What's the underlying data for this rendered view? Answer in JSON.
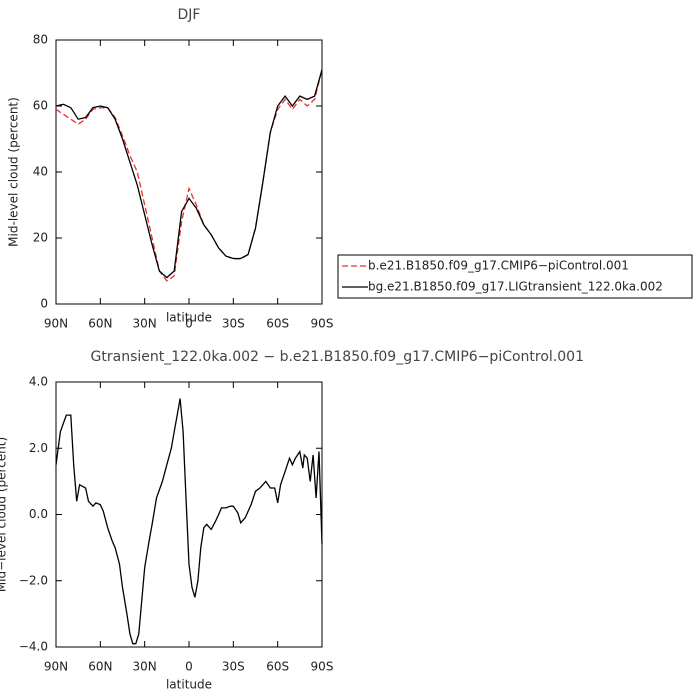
{
  "chart_data": [
    {
      "type": "line",
      "title": "DJF",
      "ylabel": "Mid-level cloud (percent)",
      "xlabel": "latitude",
      "x": [
        90,
        85,
        80,
        75,
        70,
        65,
        60,
        55,
        50,
        45,
        40,
        35,
        30,
        25,
        20,
        15,
        10,
        5,
        0,
        -5,
        -10,
        -15,
        -20,
        -25,
        -30,
        -35,
        -40,
        -45,
        -50,
        -55,
        -60,
        -65,
        -70,
        -75,
        -80,
        -85,
        -90
      ],
      "series": [
        {
          "name": "b.e21.B1850.f09_g17.CMIP6−piControl.001",
          "color": "#e8312f",
          "dash": true,
          "values": [
            59,
            57.5,
            56,
            54.5,
            56,
            59,
            59.5,
            59.5,
            56.5,
            51,
            45,
            40,
            30,
            20,
            10,
            7,
            8.5,
            25,
            35,
            30,
            24,
            21,
            17,
            14.5,
            13.7,
            13.7,
            15,
            23,
            37,
            52,
            59,
            62,
            59,
            62,
            60,
            62,
            71
          ]
        },
        {
          "name": "bg.e21.B1850.f09_g17.LIGtransient_122.0ka.002",
          "color": "#000000",
          "dash": false,
          "values": [
            60,
            60.5,
            59.5,
            56,
            56.5,
            59.5,
            60,
            59.5,
            56,
            50,
            43,
            36,
            27,
            18,
            10,
            8,
            10,
            28,
            32,
            29,
            24,
            21,
            17,
            14.5,
            13.8,
            13.8,
            15,
            23,
            37,
            52,
            60,
            63,
            60,
            63,
            62,
            63,
            71
          ]
        }
      ],
      "xlim": [
        90,
        -90
      ],
      "xticks": [
        {
          "value": 90,
          "label": "90N"
        },
        {
          "value": 60,
          "label": "60N"
        },
        {
          "value": 30,
          "label": "30N"
        },
        {
          "value": 0,
          "label": "0"
        },
        {
          "value": -30,
          "label": "30S"
        },
        {
          "value": -60,
          "label": "60S"
        },
        {
          "value": -90,
          "label": "90S"
        }
      ],
      "ylim": [
        0,
        80
      ],
      "yticks": [
        0,
        20,
        40,
        60,
        80
      ],
      "legend": "right"
    },
    {
      "type": "line",
      "title": "Gtransient_122.0ka.002 − b.e21.B1850.f09_g17.CMIP6−piControl.001",
      "ylabel": "Mid−level cloud (percent)",
      "xlabel": "latitude",
      "x": [
        90,
        87,
        83,
        80,
        78,
        76,
        74,
        70,
        68,
        65,
        63,
        60,
        58,
        55,
        52,
        50,
        47,
        45,
        42,
        40,
        38,
        36,
        34,
        30,
        27,
        25,
        22,
        18,
        15,
        12,
        10,
        8,
        6,
        4,
        2,
        0,
        -2,
        -4,
        -6,
        -8,
        -10,
        -12,
        -15,
        -18,
        -20,
        -22,
        -25,
        -28,
        -30,
        -33,
        -35,
        -38,
        -42,
        -45,
        -48,
        -52,
        -55,
        -58,
        -60,
        -62,
        -65,
        -68,
        -70,
        -72,
        -75,
        -77,
        -78,
        -80,
        -82,
        -84,
        -86,
        -88,
        -90
      ],
      "values": [
        1.5,
        2.5,
        3,
        3,
        1.5,
        0.4,
        0.9,
        0.8,
        0.4,
        0.25,
        0.35,
        0.3,
        0.1,
        -0.4,
        -0.8,
        -1.0,
        -1.5,
        -2.2,
        -3.0,
        -3.6,
        -3.9,
        -3.9,
        -3.6,
        -1.6,
        -0.8,
        -0.3,
        0.5,
        1.0,
        1.5,
        2.0,
        2.5,
        3.0,
        3.5,
        2.5,
        0.5,
        -1.5,
        -2.2,
        -2.5,
        -2.0,
        -1.0,
        -0.4,
        -0.3,
        -0.45,
        -0.2,
        0.0,
        0.2,
        0.2,
        0.25,
        0.25,
        0.05,
        -0.25,
        -0.1,
        0.3,
        0.7,
        0.8,
        1.0,
        0.8,
        0.8,
        0.35,
        0.9,
        1.3,
        1.7,
        1.5,
        1.7,
        1.9,
        1.4,
        1.8,
        1.7,
        1.0,
        1.8,
        0.5,
        1.9,
        -0.9
      ],
      "color": "#000000",
      "xlim": [
        90,
        -90
      ],
      "xticks": [
        {
          "value": 90,
          "label": "90N"
        },
        {
          "value": 60,
          "label": "60N"
        },
        {
          "value": 30,
          "label": "30N"
        },
        {
          "value": 0,
          "label": "0"
        },
        {
          "value": -30,
          "label": "30S"
        },
        {
          "value": -60,
          "label": "60S"
        },
        {
          "value": -90,
          "label": "90S"
        }
      ],
      "ylim": [
        -4,
        4
      ],
      "yticks": [
        {
          "value": -4,
          "label": "−4.0"
        },
        {
          "value": -2,
          "label": "−2.0"
        },
        {
          "value": 0,
          "label": "0.0"
        },
        {
          "value": 2,
          "label": "2.0"
        },
        {
          "value": 4,
          "label": "4.0"
        }
      ]
    }
  ]
}
